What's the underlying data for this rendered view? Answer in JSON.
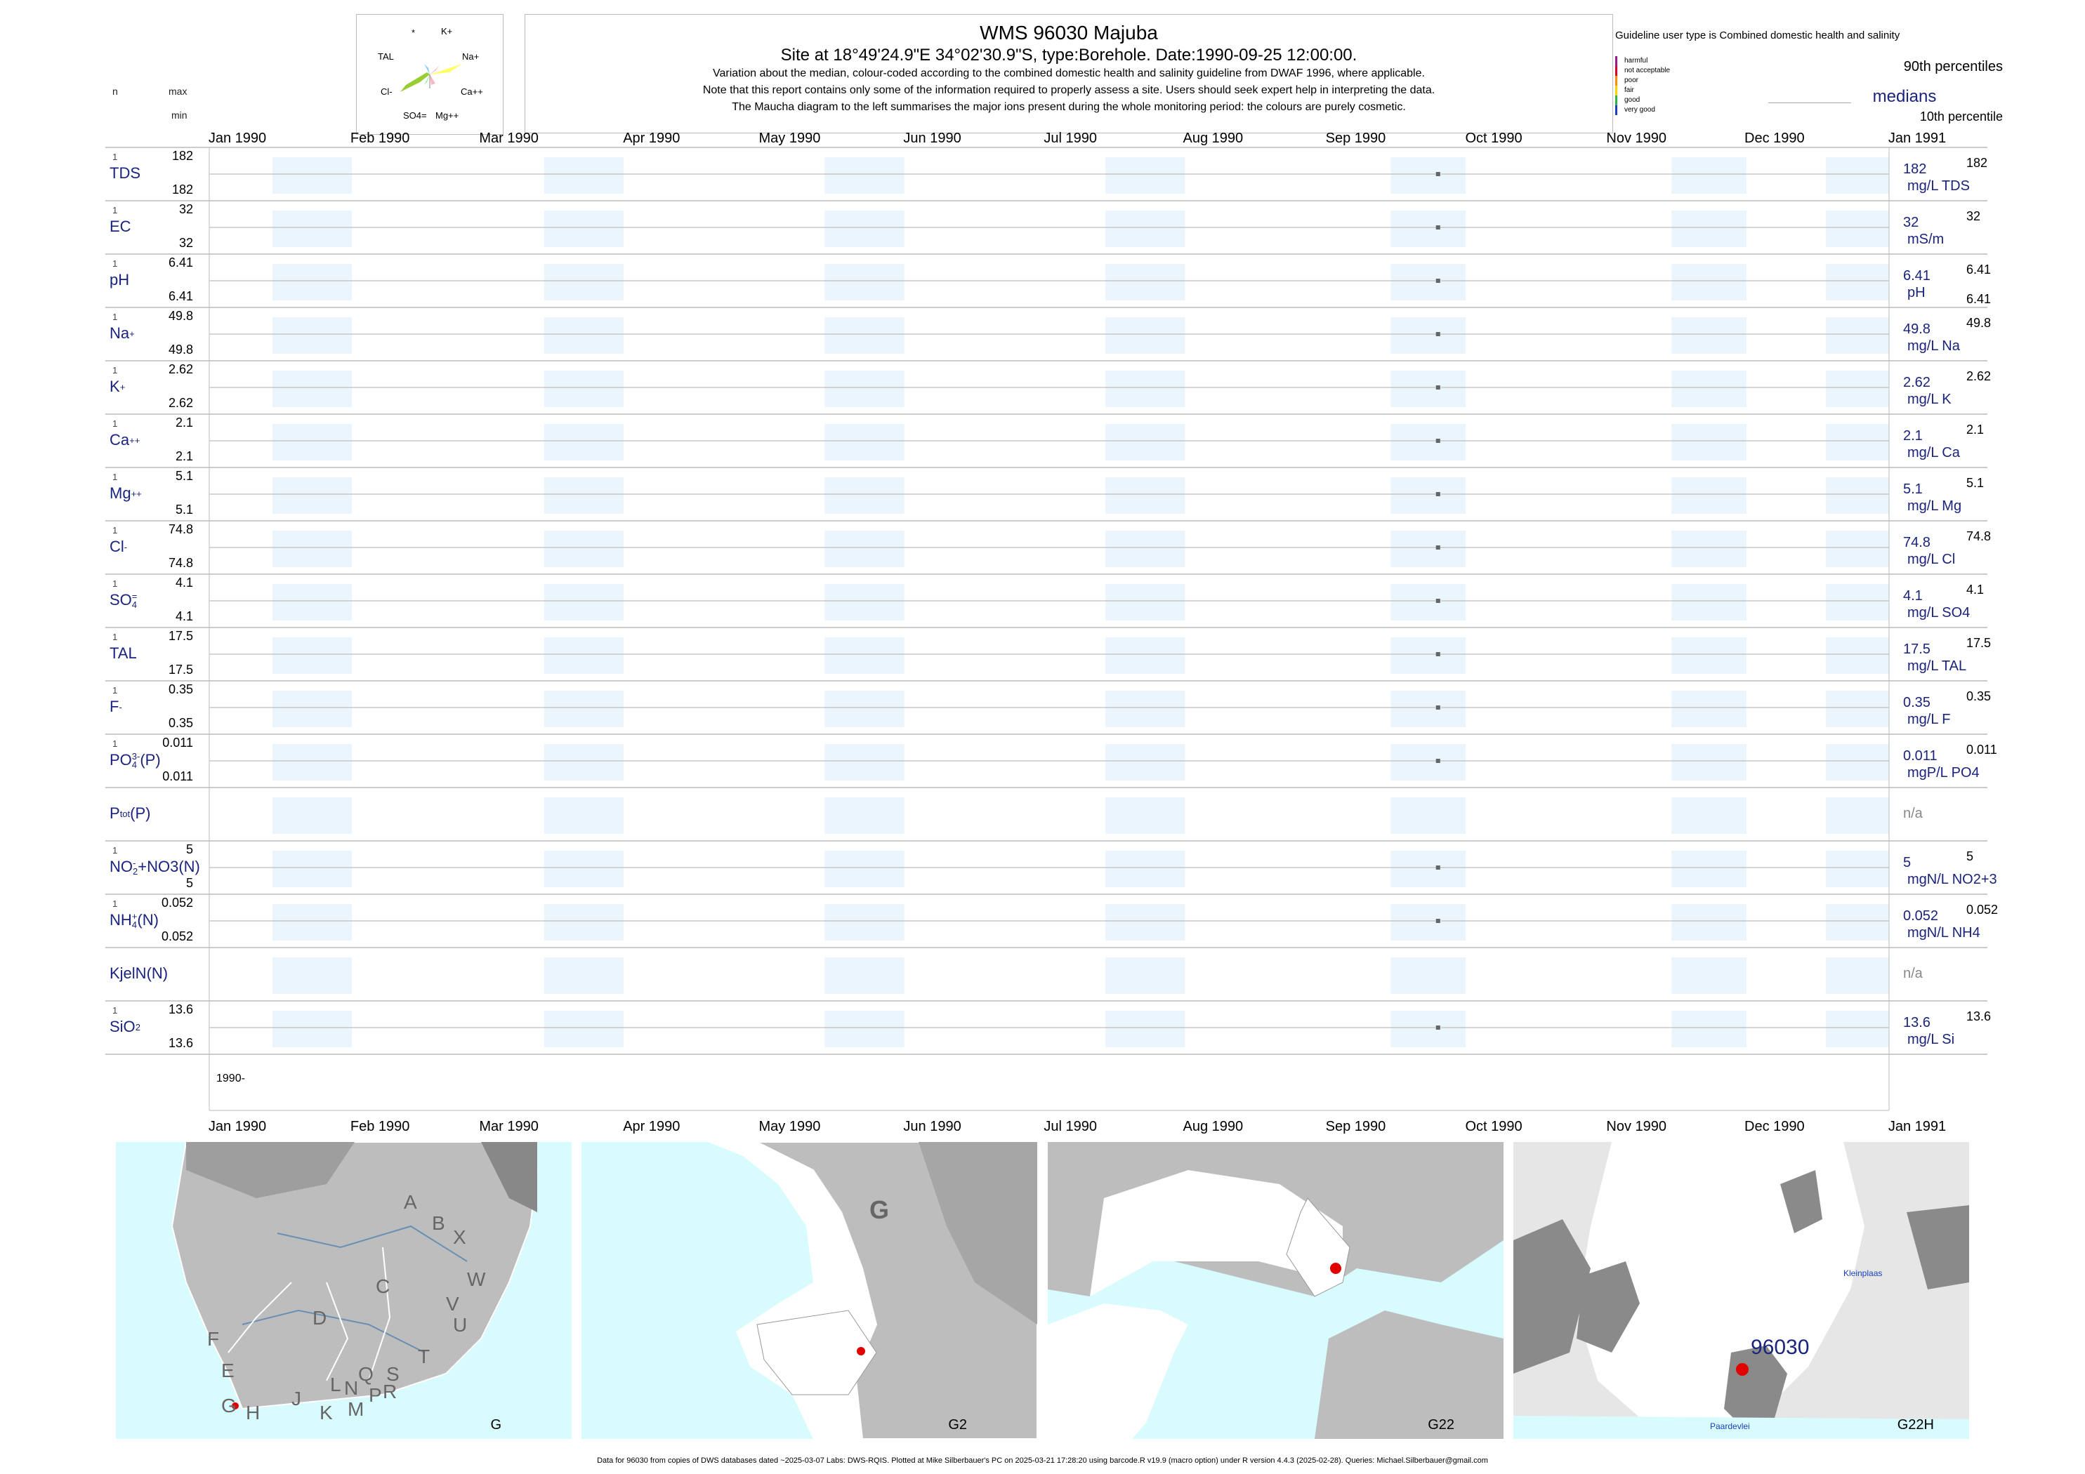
{
  "header": {
    "title": "WMS 96030  Majuba",
    "subtitle": "Site at 18°49'24.9\"E 34°02'30.9\"S, type:Borehole. Date:1990-09-25 12:00:00.",
    "desc1": "Variation about the median,  colour-coded according to the combined domestic health and salinity guideline from DWAF 1996, where applicable.",
    "desc2": "Note that this report contains only some of the information required to properly assess a site. Users should seek expert help in interpreting the data.",
    "desc3": "The Maucha diagram to the left summarises the major ions present during the whole monitoring period: the colours are purely cosmetic."
  },
  "maucha": {
    "ions": [
      "*",
      "K+",
      "TAL",
      "Na+",
      "Cl-",
      "Ca++",
      "SO4=",
      "Mg++"
    ]
  },
  "legend": {
    "guideline": "Guideline user type is Combined domestic health and salinity",
    "classes": [
      "harmful",
      "not acceptable",
      "poor",
      "fair",
      "good",
      "very good"
    ],
    "class_colors": [
      "#9c1a8c",
      "#e0002a",
      "#ff8c00",
      "#f5d800",
      "#2fb34a",
      "#1f3fbf"
    ],
    "p90": "90th percentiles",
    "medians": "medians",
    "p10": "10th percentile"
  },
  "left_header": {
    "n": "n",
    "max": "max",
    "min": "min"
  },
  "footer": "Data for 96030 from copies of DWS databases dated ~2025-03-07 Labs: DWS-RQIS. Plotted at Mike Silberbauer's PC on 2025-03-21 17:28:20 using barcode.R v19.9 (macro option) under R version 4.4.3 (2025-02-28). Queries: Michael.Silberbauer@gmail.com",
  "chart_data": {
    "type": "scatter",
    "title": "WMS 96030  Majuba",
    "x_axis": {
      "type": "date",
      "range": [
        "1990-01-01",
        "1991-01-01"
      ],
      "ticks": [
        "Jan 1990",
        "Feb 1990",
        "Mar 1990",
        "Apr 1990",
        "May 1990",
        "Jun 1990",
        "Jul 1990",
        "Aug 1990",
        "Sep 1990",
        "Oct 1990",
        "Nov 1990",
        "Dec 1990",
        "Jan 1991"
      ],
      "year_label": "1990-"
    },
    "sample_date": "1990-09-25",
    "rows": [
      {
        "label": "TDS",
        "n": "1",
        "max": "182",
        "min": "182",
        "value": "182",
        "unit": "mg/L TDS",
        "rmax": "182"
      },
      {
        "label": "EC",
        "n": "1",
        "max": "32",
        "min": "32",
        "value": "32",
        "unit": "mS/m",
        "rmax": "32"
      },
      {
        "label": "pH",
        "n": "1",
        "max": "6.41",
        "min": "6.41",
        "value": "6.41",
        "unit": "pH",
        "rmax": "6.41",
        "rmin": "6.41"
      },
      {
        "label": "Na",
        "sup": "+",
        "n": "1",
        "max": "49.8",
        "min": "49.8",
        "value": "49.8",
        "unit": "mg/L Na",
        "rmax": "49.8"
      },
      {
        "label": "K",
        "sup": "+",
        "n": "1",
        "max": "2.62",
        "min": "2.62",
        "value": "2.62",
        "unit": "mg/L K",
        "rmax": "2.62"
      },
      {
        "label": "Ca",
        "sup": "++",
        "n": "1",
        "max": "2.1",
        "min": "2.1",
        "value": "2.1",
        "unit": "mg/L Ca",
        "rmax": "2.1"
      },
      {
        "label": "Mg",
        "sup": "++",
        "n": "1",
        "max": "5.1",
        "min": "5.1",
        "value": "5.1",
        "unit": "mg/L Mg",
        "rmax": "5.1"
      },
      {
        "label": "Cl",
        "sup": "-",
        "n": "1",
        "max": "74.8",
        "min": "74.8",
        "value": "74.8",
        "unit": "mg/L Cl",
        "rmax": "74.8"
      },
      {
        "label": "SO",
        "sub": "4",
        "sup": "=",
        "n": "1",
        "max": "4.1",
        "min": "4.1",
        "value": "4.1",
        "unit": "mg/L SO4",
        "rmax": "4.1"
      },
      {
        "label": "TAL",
        "n": "1",
        "max": "17.5",
        "min": "17.5",
        "value": "17.5",
        "unit": "mg/L TAL",
        "rmax": "17.5"
      },
      {
        "label": "F",
        "sup": "-",
        "n": "1",
        "max": "0.35",
        "min": "0.35",
        "value": "0.35",
        "unit": "mg/L F",
        "rmax": "0.35"
      },
      {
        "label": "PO",
        "sub": "4",
        "sup": "3-",
        "suffix": "(P)",
        "n": "1",
        "max": "0.011",
        "min": "0.011",
        "value": "0.011",
        "unit": "mgP/L PO4",
        "rmax": "0.011"
      },
      {
        "label": "P",
        "sub": "tot",
        "suffix": "(P)",
        "na": "n/a"
      },
      {
        "label": "NO",
        "sub": "2",
        "sup": "-",
        "suffix": "+NO3(N)",
        "n": "1",
        "max": "5",
        "min": "5",
        "value": "5",
        "unit": "mgN/L NO2+3",
        "rmax": "5"
      },
      {
        "label": "NH",
        "sub": "4",
        "sup": "+",
        "suffix": "(N)",
        "n": "1",
        "max": "0.052",
        "min": "0.052",
        "value": "0.052",
        "unit": "mgN/L NH4",
        "rmax": "0.052"
      },
      {
        "label": "KjelN(N)",
        "na": "n/a"
      },
      {
        "label": "SiO",
        "sub": "2",
        "n": "1",
        "max": "13.6",
        "min": "13.6",
        "value": "13.6",
        "unit": "mg/L Si",
        "rmax": "13.6"
      }
    ]
  },
  "maps": [
    {
      "label": "G",
      "letters": [
        "A",
        "B",
        "X",
        "W",
        "C",
        "D",
        "V",
        "U",
        "T",
        "F",
        "E",
        "G",
        "H",
        "J",
        "K",
        "L",
        "M",
        "N",
        "P",
        "Q",
        "R",
        "S"
      ]
    },
    {
      "label": "G2",
      "region": "G"
    },
    {
      "label": "G22"
    },
    {
      "label": "G22H",
      "site": "96030",
      "places": [
        "Kleinplaas",
        "Paardevlei"
      ]
    }
  ]
}
